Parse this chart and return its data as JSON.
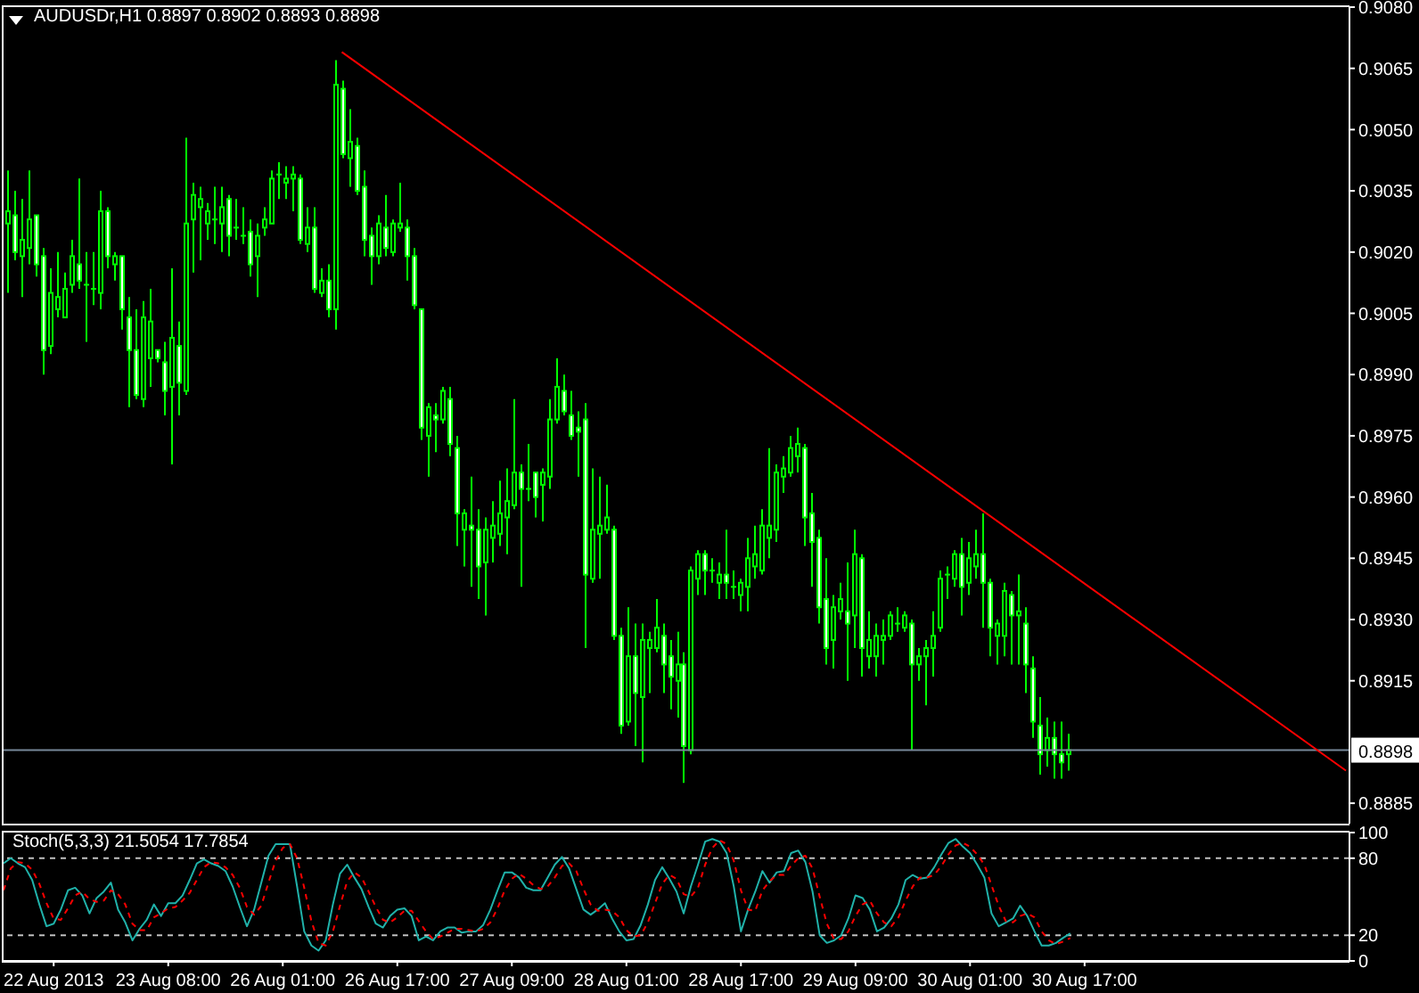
{
  "chart_data": [
    {
      "type": "candlestick",
      "title": "AUDUSDr,H1 0.8897 0.8902 0.8893 0.8898",
      "categories": [
        null,
        null,
        null,
        null,
        null,
        null,
        null,
        null,
        null,
        null,
        null,
        null,
        null,
        null,
        null,
        null,
        null,
        null,
        null,
        null,
        null,
        null,
        null,
        null,
        null,
        null,
        null,
        null,
        null,
        null,
        null,
        null,
        null,
        null,
        null,
        null,
        null,
        null,
        null,
        null,
        null,
        null,
        null,
        null,
        null,
        null,
        null,
        null,
        null,
        null,
        null,
        null,
        null,
        null,
        null,
        null,
        null,
        null,
        null,
        null,
        null,
        null,
        null,
        null,
        null,
        null,
        null,
        null,
        null,
        null,
        null,
        null,
        null,
        null,
        null,
        null,
        null,
        null,
        null,
        null,
        null,
        null,
        null,
        null,
        null,
        null,
        null,
        null,
        null,
        null,
        null,
        null,
        null,
        null,
        null,
        null,
        null,
        null,
        null,
        null,
        null,
        null,
        null,
        null,
        null,
        null,
        null,
        null,
        null,
        null,
        null,
        null,
        null,
        null,
        null,
        null,
        null,
        null,
        null,
        null,
        null,
        null,
        null,
        null,
        null,
        null,
        null,
        null,
        null,
        null,
        null,
        null,
        null,
        null,
        null,
        null,
        null,
        null,
        null,
        null,
        null,
        null,
        null,
        null,
        null,
        null,
        null,
        null,
        null,
        null,
        null,
        null,
        null,
        null,
        null,
        null,
        null,
        null,
        null,
        null,
        null,
        null,
        null,
        null,
        null,
        null,
        null,
        null,
        null,
        null,
        null,
        null,
        null,
        null,
        null,
        null,
        null,
        null,
        null,
        null,
        null,
        null,
        null,
        null,
        null,
        null,
        null,
        null,
        null
      ],
      "ohlc": [
        [
          0.9027,
          0.904,
          0.901,
          0.903
        ],
        [
          0.9029,
          0.9035,
          0.9018,
          0.902
        ],
        [
          0.9019,
          0.9033,
          0.9009,
          0.9023
        ],
        [
          0.9021,
          0.904,
          0.9017,
          0.9028
        ],
        [
          0.9029,
          0.9029,
          0.9014,
          0.9017
        ],
        [
          0.9019,
          0.9021,
          0.899,
          0.8996
        ],
        [
          0.8997,
          0.9016,
          0.8995,
          0.901
        ],
        [
          0.9006,
          0.902,
          0.9004,
          0.9009
        ],
        [
          0.9004,
          0.9015,
          0.9004,
          0.9011
        ],
        [
          0.9012,
          0.9023,
          0.901,
          0.9019
        ],
        [
          0.9017,
          0.9038,
          0.9011,
          0.9013
        ],
        [
          0.9012,
          0.902,
          0.8998,
          0.9012
        ],
        [
          0.9011,
          0.902,
          0.9007,
          0.9011
        ],
        [
          0.901,
          0.9035,
          0.9006,
          0.903
        ],
        [
          0.903,
          0.9031,
          0.9016,
          0.9019
        ],
        [
          0.9017,
          0.902,
          0.9013,
          0.9019
        ],
        [
          0.9019,
          0.9019,
          0.9001,
          0.9006
        ],
        [
          0.9004,
          0.9009,
          0.8982,
          0.8996
        ],
        [
          0.8996,
          0.9006,
          0.8984,
          0.8985
        ],
        [
          0.8984,
          0.9008,
          0.8982,
          0.9004
        ],
        [
          0.8994,
          0.9011,
          0.8987,
          0.9003
        ],
        [
          0.8996,
          0.8996,
          0.8993,
          0.8994
        ],
        [
          0.8993,
          0.8998,
          0.898,
          0.8986
        ],
        [
          0.8987,
          0.9016,
          0.8968,
          0.8999
        ],
        [
          0.8997,
          0.9003,
          0.898,
          0.8988
        ],
        [
          0.8986,
          0.9048,
          0.8985,
          0.9027
        ],
        [
          0.9028,
          0.9037,
          0.9015,
          0.9034
        ],
        [
          0.9031,
          0.9036,
          0.9018,
          0.9033
        ],
        [
          0.9027,
          0.9032,
          0.9023,
          0.903
        ],
        [
          0.9028,
          0.9036,
          0.9022,
          0.9028
        ],
        [
          0.9027,
          0.9036,
          0.902,
          0.9031
        ],
        [
          0.9033,
          0.9034,
          0.9019,
          0.9024
        ],
        [
          0.9026,
          0.9033,
          0.9023,
          0.9026
        ],
        [
          0.9024,
          0.9031,
          0.9022,
          0.9024
        ],
        [
          0.9025,
          0.9028,
          0.9014,
          0.9017
        ],
        [
          0.9019,
          0.9027,
          0.9009,
          0.9024
        ],
        [
          0.9026,
          0.9031,
          0.9024,
          0.9028
        ],
        [
          0.9027,
          0.904,
          0.9027,
          0.9038
        ],
        [
          0.9039,
          0.9042,
          0.9033,
          0.9039
        ],
        [
          0.9037,
          0.9041,
          0.9033,
          0.9038
        ],
        [
          0.9038,
          0.9041,
          0.903,
          0.9039
        ],
        [
          0.9038,
          0.9039,
          0.9022,
          0.9023
        ],
        [
          0.9022,
          0.9031,
          0.902,
          0.9026
        ],
        [
          0.9026,
          0.9031,
          0.901,
          0.9011
        ],
        [
          0.901,
          0.9016,
          0.9009,
          0.9013
        ],
        [
          0.9013,
          0.9017,
          0.9004,
          0.9006
        ],
        [
          0.9006,
          0.9067,
          0.9001,
          0.9061
        ],
        [
          0.906,
          0.9062,
          0.9043,
          0.9044
        ],
        [
          0.9043,
          0.9055,
          0.9036,
          0.9047
        ],
        [
          0.9046,
          0.9048,
          0.9034,
          0.9035
        ],
        [
          0.9036,
          0.904,
          0.9019,
          0.9023
        ],
        [
          0.9024,
          0.9026,
          0.9012,
          0.9019
        ],
        [
          0.9019,
          0.9029,
          0.9017,
          0.9027
        ],
        [
          0.9026,
          0.9034,
          0.9019,
          0.9021
        ],
        [
          0.902,
          0.9028,
          0.9019,
          0.9027
        ],
        [
          0.9026,
          0.9037,
          0.9025,
          0.9027
        ],
        [
          0.9026,
          0.9028,
          0.9013,
          0.9019
        ],
        [
          0.9019,
          0.9021,
          0.9006,
          0.9007
        ],
        [
          0.9006,
          0.9006,
          0.8974,
          0.8977
        ],
        [
          0.8975,
          0.8983,
          0.8965,
          0.8982
        ],
        [
          0.898,
          0.8983,
          0.8971,
          0.8979
        ],
        [
          0.8979,
          0.8987,
          0.8978,
          0.8986
        ],
        [
          0.8984,
          0.8987,
          0.897,
          0.8973
        ],
        [
          0.8972,
          0.8975,
          0.8948,
          0.8956
        ],
        [
          0.8952,
          0.8957,
          0.8943,
          0.8956
        ],
        [
          0.8953,
          0.8965,
          0.8938,
          0.8952
        ],
        [
          0.8952,
          0.8957,
          0.8935,
          0.8943
        ],
        [
          0.8944,
          0.8955,
          0.8931,
          0.8952
        ],
        [
          0.895,
          0.8959,
          0.8944,
          0.8953
        ],
        [
          0.8951,
          0.8964,
          0.8948,
          0.8956
        ],
        [
          0.8955,
          0.8967,
          0.8946,
          0.8959
        ],
        [
          0.8958,
          0.8984,
          0.8957,
          0.8966
        ],
        [
          0.8966,
          0.8968,
          0.8938,
          0.8962
        ],
        [
          0.8962,
          0.8973,
          0.8959,
          0.8962
        ],
        [
          0.8966,
          0.8966,
          0.8955,
          0.896
        ],
        [
          0.8963,
          0.8967,
          0.8954,
          0.8966
        ],
        [
          0.8965,
          0.8984,
          0.8962,
          0.8979
        ],
        [
          0.8979,
          0.8994,
          0.8978,
          0.8987
        ],
        [
          0.8986,
          0.899,
          0.898,
          0.8981
        ],
        [
          0.898,
          0.8986,
          0.8974,
          0.8975
        ],
        [
          0.8977,
          0.8981,
          0.8965,
          0.8976
        ],
        [
          0.8979,
          0.8983,
          0.8923,
          0.8941
        ],
        [
          0.894,
          0.8967,
          0.8939,
          0.8952
        ],
        [
          0.8951,
          0.8965,
          0.894,
          0.8953
        ],
        [
          0.8952,
          0.8963,
          0.8951,
          0.8955
        ],
        [
          0.8952,
          0.8953,
          0.8925,
          0.8926
        ],
        [
          0.8926,
          0.8928,
          0.8902,
          0.8904
        ],
        [
          0.8905,
          0.8933,
          0.8904,
          0.8921
        ],
        [
          0.8921,
          0.8929,
          0.8899,
          0.8912
        ],
        [
          0.8911,
          0.8929,
          0.8895,
          0.8925
        ],
        [
          0.8923,
          0.8927,
          0.8912,
          0.8925
        ],
        [
          0.8923,
          0.8935,
          0.8922,
          0.8928
        ],
        [
          0.8926,
          0.8929,
          0.8912,
          0.8919
        ],
        [
          0.8921,
          0.8925,
          0.8908,
          0.8916
        ],
        [
          0.8915,
          0.8927,
          0.8906,
          0.8919
        ],
        [
          0.8919,
          0.8922,
          0.889,
          0.8899
        ],
        [
          0.8898,
          0.8943,
          0.8897,
          0.8942
        ],
        [
          0.894,
          0.8947,
          0.8936,
          0.8946
        ],
        [
          0.8946,
          0.8947,
          0.8936,
          0.8942
        ],
        [
          0.8942,
          0.8945,
          0.8939,
          0.8942
        ],
        [
          0.8939,
          0.8944,
          0.8935,
          0.8941
        ],
        [
          0.8941,
          0.8952,
          0.8935,
          0.8939
        ],
        [
          0.8938,
          0.8942,
          0.8935,
          0.8938
        ],
        [
          0.8936,
          0.894,
          0.8932,
          0.8939
        ],
        [
          0.8938,
          0.895,
          0.8932,
          0.8945
        ],
        [
          0.8943,
          0.8953,
          0.894,
          0.8946
        ],
        [
          0.8942,
          0.8957,
          0.8941,
          0.8953
        ],
        [
          0.895,
          0.8972,
          0.8945,
          0.8953
        ],
        [
          0.8952,
          0.8968,
          0.8949,
          0.8966
        ],
        [
          0.8965,
          0.897,
          0.8961,
          0.8967
        ],
        [
          0.8966,
          0.8975,
          0.8965,
          0.8972
        ],
        [
          0.897,
          0.8977,
          0.8966,
          0.8973
        ],
        [
          0.8972,
          0.8973,
          0.8948,
          0.8955
        ],
        [
          0.8956,
          0.8961,
          0.8938,
          0.8949
        ],
        [
          0.895,
          0.8952,
          0.8929,
          0.8933
        ],
        [
          0.8935,
          0.8945,
          0.8919,
          0.8923
        ],
        [
          0.8925,
          0.8936,
          0.8918,
          0.8933
        ],
        [
          0.8932,
          0.8939,
          0.893,
          0.8935
        ],
        [
          0.8932,
          0.8944,
          0.8915,
          0.8929
        ],
        [
          0.8931,
          0.8952,
          0.8923,
          0.8946
        ],
        [
          0.8945,
          0.8946,
          0.8916,
          0.8923
        ],
        [
          0.8921,
          0.8932,
          0.8918,
          0.8925
        ],
        [
          0.8921,
          0.8929,
          0.8916,
          0.8926
        ],
        [
          0.8925,
          0.893,
          0.8919,
          0.8926
        ],
        [
          0.8926,
          0.8932,
          0.8925,
          0.8931
        ],
        [
          0.8929,
          0.8933,
          0.8927,
          0.8929
        ],
        [
          0.8928,
          0.8932,
          0.8927,
          0.8931
        ],
        [
          0.8929,
          0.893,
          0.8898,
          0.8919
        ],
        [
          0.8919,
          0.8923,
          0.8915,
          0.8921
        ],
        [
          0.8921,
          0.8925,
          0.8909,
          0.8923
        ],
        [
          0.8923,
          0.8932,
          0.8916,
          0.8926
        ],
        [
          0.8928,
          0.8942,
          0.8927,
          0.894
        ],
        [
          0.8941,
          0.8943,
          0.8935,
          0.8941
        ],
        [
          0.894,
          0.8947,
          0.8938,
          0.8946
        ],
        [
          0.8946,
          0.895,
          0.8931,
          0.8938
        ],
        [
          0.8939,
          0.8949,
          0.8936,
          0.8945
        ],
        [
          0.8943,
          0.8952,
          0.894,
          0.8946
        ],
        [
          0.8946,
          0.8956,
          0.8928,
          0.8939
        ],
        [
          0.8939,
          0.894,
          0.8921,
          0.8928
        ],
        [
          0.8926,
          0.893,
          0.8919,
          0.8929
        ],
        [
          0.8926,
          0.8939,
          0.8921,
          0.8937
        ],
        [
          0.8936,
          0.8937,
          0.8919,
          0.8931
        ],
        [
          0.8931,
          0.8941,
          0.8919,
          0.8932
        ],
        [
          0.8929,
          0.8933,
          0.8912,
          0.8919
        ],
        [
          0.8918,
          0.8921,
          0.8901,
          0.8905
        ],
        [
          0.8904,
          0.8911,
          0.8892,
          0.8897
        ],
        [
          0.8898,
          0.8906,
          0.8894,
          0.8901
        ],
        [
          0.8901,
          0.8905,
          0.8891,
          0.8897
        ],
        [
          0.8897,
          0.8905,
          0.8891,
          0.8895
        ],
        [
          0.8897,
          0.8902,
          0.8893,
          0.8898
        ],
        null,
        null,
        null,
        null,
        null,
        null,
        null,
        null,
        null,
        null,
        null,
        null,
        null,
        null,
        null,
        null,
        null,
        null,
        null,
        null,
        null,
        null,
        null,
        null,
        null,
        null,
        null,
        null,
        null,
        null,
        null,
        null,
        null,
        null,
        null,
        null,
        null,
        null,
        null
      ],
      "color": "#00ff00",
      "series": [
        {
          "type": "line",
          "color": "#ff0000",
          "values": [
            null,
            null,
            null,
            null,
            null,
            null,
            null,
            null,
            null,
            null,
            null,
            null,
            null,
            null,
            null,
            null,
            null,
            null,
            null,
            null,
            null,
            null,
            null,
            null,
            null,
            null,
            null,
            null,
            null,
            null,
            null,
            null,
            null,
            null,
            null,
            null,
            null,
            null,
            null,
            null,
            null,
            null,
            null,
            null,
            null,
            null,
            null,
            0.9069,
            null,
            null,
            null,
            null,
            null,
            null,
            null,
            null,
            null,
            null,
            null,
            null,
            null,
            null,
            null,
            null,
            null,
            null,
            null,
            null,
            null,
            null,
            null,
            null,
            null,
            null,
            null,
            null,
            null,
            null,
            null,
            null,
            null,
            null,
            null,
            null,
            null,
            null,
            null,
            null,
            null,
            null,
            null,
            null,
            null,
            null,
            null,
            null,
            null,
            null,
            null,
            null,
            null,
            null,
            null,
            null,
            null,
            null,
            null,
            null,
            null,
            null,
            null,
            null,
            null,
            null,
            null,
            null,
            null,
            null,
            null,
            null,
            null,
            null,
            null,
            null,
            null,
            null,
            null,
            null,
            null,
            null,
            null,
            null,
            null,
            null,
            null,
            null,
            null,
            null,
            null,
            null,
            null,
            null,
            null,
            null,
            null,
            null,
            null,
            null,
            null,
            null,
            null,
            null,
            null,
            null,
            null,
            null,
            null,
            null,
            null,
            null,
            null,
            null,
            null,
            null,
            null,
            null,
            null,
            null,
            null,
            null,
            null,
            null,
            null,
            null,
            null,
            null,
            null,
            null,
            null,
            null,
            null,
            null,
            null,
            null,
            null,
            null,
            null,
            null,
            0.8893
          ]
        }
      ],
      "ylim": [
        0.888,
        0.908
      ],
      "yticks": [
        0.8885,
        0.8915,
        {
          "value": 0.893,
          "label": "0.8930"
        },
        0.8945,
        {
          "value": 0.896,
          "label": "0.8960"
        },
        0.8975,
        {
          "value": 0.899,
          "label": "0.8990"
        },
        0.9005,
        {
          "value": 0.902,
          "label": "0.9020"
        },
        0.9035,
        {
          "value": 0.905,
          "label": "0.9050"
        },
        0.9065,
        {
          "value": 0.908,
          "label": "0.9080"
        }
      ],
      "ref_lines": [
        {
          "axis": "y",
          "value": 0.8898,
          "label": "0.8898",
          "color": "#778899"
        }
      ],
      "tick_labels": "y",
      "marker": "none"
    },
    {
      "type": "line",
      "title": "Stoch(5,3,3) 21.5054 17.7854",
      "categories": [
        null,
        null,
        null,
        null,
        null,
        null,
        null,
        "22 Aug 2013",
        null,
        null,
        null,
        null,
        null,
        null,
        null,
        null,
        null,
        null,
        null,
        null,
        null,
        null,
        null,
        "23 Aug 08:00",
        null,
        null,
        null,
        null,
        null,
        null,
        null,
        null,
        null,
        null,
        null,
        null,
        null,
        null,
        null,
        "26 Aug 01:00",
        null,
        null,
        null,
        null,
        null,
        null,
        null,
        null,
        null,
        null,
        null,
        null,
        null,
        null,
        null,
        "26 Aug 17:00",
        null,
        null,
        null,
        null,
        null,
        null,
        null,
        null,
        null,
        null,
        null,
        null,
        null,
        null,
        null,
        "27 Aug 09:00",
        null,
        null,
        null,
        null,
        null,
        null,
        null,
        null,
        null,
        null,
        null,
        null,
        null,
        null,
        null,
        "28 Aug 01:00",
        null,
        null,
        null,
        null,
        null,
        null,
        null,
        null,
        null,
        null,
        null,
        null,
        null,
        null,
        null,
        "28 Aug 17:00",
        null,
        null,
        null,
        null,
        null,
        null,
        null,
        null,
        null,
        null,
        null,
        null,
        null,
        null,
        null,
        "29 Aug 09:00",
        null,
        null,
        null,
        null,
        null,
        null,
        null,
        null,
        null,
        null,
        null,
        null,
        null,
        null,
        null,
        "30 Aug 01:00",
        null,
        null,
        null,
        null,
        null,
        null,
        null,
        null,
        null,
        null,
        null,
        null,
        null,
        null,
        null,
        "30 Aug 17:00",
        null,
        null,
        null,
        null,
        null,
        null,
        null,
        null,
        null,
        null,
        null,
        null,
        null,
        null,
        null,
        null,
        null,
        null,
        null,
        null,
        null,
        null,
        null,
        null,
        null,
        null,
        null,
        null,
        null,
        null,
        null,
        null,
        null,
        null,
        null,
        null,
        null
      ],
      "series": [
        {
          "color": "#20b2aa",
          "values": [
            76,
            80,
            76,
            73,
            63,
            44,
            27,
            29,
            40,
            55,
            57,
            51,
            37,
            49,
            54,
            61,
            40,
            30,
            16,
            25,
            32,
            44,
            35,
            45,
            45,
            51,
            63,
            76,
            79,
            76,
            74,
            70,
            58,
            42,
            27,
            40,
            61,
            82,
            91,
            91,
            91,
            58,
            23,
            12,
            8,
            16,
            44,
            68,
            75,
            65,
            56,
            42,
            29,
            26,
            35,
            40,
            41,
            35,
            16,
            19,
            16,
            23,
            26,
            26,
            22,
            23,
            23,
            28,
            40,
            55,
            69,
            69,
            65,
            57,
            55,
            55,
            65,
            75,
            81,
            72,
            56,
            40,
            36,
            40,
            45,
            33,
            23,
            16,
            17,
            28,
            44,
            63,
            73,
            64,
            54,
            37,
            58,
            75,
            93,
            95,
            93,
            84,
            58,
            23,
            40,
            54,
            70,
            61,
            69,
            70,
            84,
            86,
            77,
            54,
            20,
            14,
            16,
            20,
            33,
            51,
            49,
            40,
            23,
            26,
            33,
            44,
            63,
            67,
            64,
            65,
            73,
            83,
            92,
            95,
            89,
            84,
            75,
            65,
            37,
            27,
            30,
            33,
            43,
            35,
            23,
            12,
            12,
            14,
            18,
            21.5054,
            null,
            null,
            null,
            null,
            null,
            null,
            null,
            null,
            null,
            null,
            null,
            null,
            null,
            null,
            null,
            null,
            null,
            null,
            null,
            null,
            null,
            null,
            null,
            null,
            null,
            null,
            null,
            null,
            null,
            null,
            null,
            null,
            null,
            null,
            null,
            null,
            null,
            null,
            null
          ]
        },
        {
          "color": "#ff0000",
          "line_style": "dashed",
          "values": [
            55,
            72,
            77,
            76,
            71,
            60,
            45,
            33,
            32,
            41,
            51,
            54,
            48,
            46,
            47,
            55,
            52,
            44,
            29,
            24,
            24,
            34,
            37,
            41,
            42,
            47,
            53,
            63,
            73,
            77,
            76,
            73,
            67,
            57,
            42,
            36,
            43,
            61,
            78,
            88,
            91,
            80,
            57,
            31,
            14,
            12,
            23,
            43,
            62,
            69,
            65,
            54,
            42,
            32,
            30,
            34,
            39,
            39,
            31,
            23,
            17,
            19,
            22,
            25,
            25,
            24,
            23,
            25,
            30,
            41,
            55,
            64,
            68,
            64,
            59,
            56,
            58,
            65,
            74,
            76,
            70,
            56,
            44,
            39,
            40,
            39,
            34,
            24,
            19,
            20,
            30,
            45,
            60,
            67,
            64,
            52,
            50,
            57,
            75,
            88,
            94,
            91,
            78,
            55,
            40,
            39,
            55,
            62,
            67,
            67,
            74,
            80,
            82,
            72,
            50,
            29,
            17,
            17,
            23,
            35,
            44,
            47,
            37,
            30,
            27,
            34,
            47,
            58,
            65,
            65,
            67,
            74,
            83,
            90,
            92,
            89,
            83,
            75,
            59,
            43,
            31,
            30,
            35,
            37,
            34,
            23,
            16,
            13,
            15,
            17.7854,
            null,
            null,
            null,
            null,
            null,
            null,
            null,
            null,
            null,
            null,
            null,
            null,
            null,
            null,
            null,
            null,
            null,
            null,
            null,
            null,
            null,
            null,
            null,
            null,
            null,
            null,
            null,
            null,
            null,
            null,
            null,
            null,
            null,
            null,
            null,
            null,
            null,
            null,
            null
          ]
        }
      ],
      "ylim": [
        0,
        100
      ],
      "yticks": [
        0,
        20,
        80,
        100
      ],
      "ref_lines": [
        {
          "axis": "y",
          "value": 20,
          "color": "#c0c0c0",
          "line_style": "dashed"
        },
        {
          "axis": "y",
          "value": 80,
          "color": "#c0c0c0",
          "line_style": "dashed"
        }
      ],
      "marker": "none"
    }
  ]
}
